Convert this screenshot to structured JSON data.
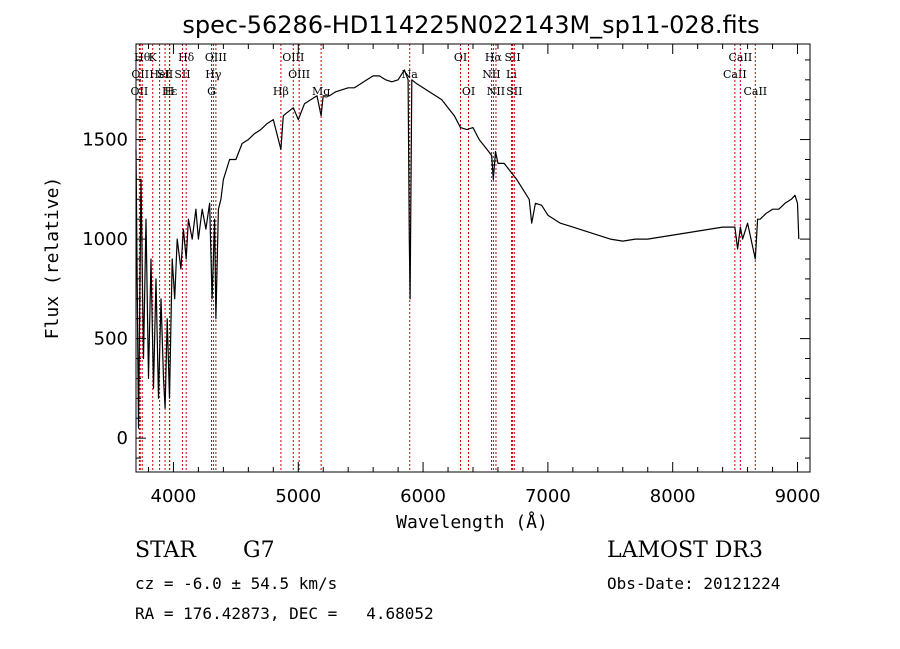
{
  "chart_data": {
    "type": "line",
    "title": "spec-56286-HD114225N022143M_sp11-028.fits",
    "xlabel": "Wavelength (Å)",
    "ylabel": "Flux (relative)",
    "xlim": [
      3700,
      9100
    ],
    "ylim": [
      -170,
      1980
    ],
    "xticks": [
      "4000",
      "5000",
      "6000",
      "7000",
      "8000",
      "9000"
    ],
    "yticks": [
      "0",
      "500",
      "1000",
      "1500"
    ],
    "grid": false,
    "series": [
      {
        "color": "#000000",
        "x": [
          3700,
          3720,
          3740,
          3760,
          3780,
          3800,
          3820,
          3840,
          3860,
          3880,
          3900,
          3920,
          3933,
          3950,
          3968,
          3990,
          4010,
          4030,
          4060,
          4080,
          4102,
          4120,
          4150,
          4180,
          4200,
          4230,
          4260,
          4290,
          4310,
          4330,
          4340,
          4360,
          4380,
          4400,
          4450,
          4500,
          4550,
          4600,
          4650,
          4700,
          4750,
          4800,
          4861,
          4880,
          4920,
          4960,
          5000,
          5050,
          5100,
          5150,
          5183,
          5200,
          5250,
          5300,
          5350,
          5400,
          5450,
          5500,
          5550,
          5600,
          5650,
          5700,
          5750,
          5800,
          5850,
          5880,
          5890,
          5896,
          5910,
          5950,
          6000,
          6050,
          6100,
          6150,
          6200,
          6250,
          6300,
          6350,
          6400,
          6450,
          6500,
          6550,
          6563,
          6580,
          6600,
          6650,
          6700,
          6750,
          6800,
          6850,
          6870,
          6900,
          6950,
          7000,
          7050,
          7100,
          7200,
          7300,
          7400,
          7500,
          7600,
          7700,
          7800,
          7900,
          8000,
          8100,
          8200,
          8300,
          8400,
          8498,
          8520,
          8542,
          8560,
          8600,
          8662,
          8680,
          8700,
          8750,
          8800,
          8850,
          8900,
          8950,
          8980,
          9000,
          9010
        ],
        "y": [
          1450,
          50,
          1300,
          400,
          1100,
          300,
          900,
          250,
          800,
          200,
          700,
          300,
          150,
          600,
          200,
          900,
          700,
          1000,
          850,
          1050,
          900,
          1100,
          1000,
          1150,
          1000,
          1150,
          1050,
          1180,
          700,
          1100,
          600,
          1150,
          1200,
          1300,
          1400,
          1400,
          1480,
          1500,
          1530,
          1550,
          1580,
          1600,
          1450,
          1620,
          1640,
          1660,
          1600,
          1680,
          1700,
          1720,
          1620,
          1720,
          1720,
          1740,
          1750,
          1760,
          1760,
          1780,
          1800,
          1820,
          1820,
          1800,
          1790,
          1800,
          1850,
          1800,
          1000,
          700,
          1800,
          1780,
          1760,
          1740,
          1720,
          1700,
          1660,
          1620,
          1560,
          1550,
          1560,
          1500,
          1460,
          1420,
          1300,
          1440,
          1380,
          1380,
          1340,
          1300,
          1250,
          1200,
          1080,
          1180,
          1170,
          1120,
          1100,
          1080,
          1060,
          1040,
          1020,
          1000,
          990,
          1000,
          1000,
          1010,
          1020,
          1030,
          1040,
          1050,
          1060,
          1060,
          950,
          1060,
          1000,
          1080,
          900,
          1100,
          1100,
          1130,
          1150,
          1150,
          1180,
          1200,
          1220,
          1180,
          1000
        ]
      }
    ],
    "lines": [
      {
        "x": 3750,
        "label": "Hθ",
        "row": 0
      },
      {
        "x": 3734,
        "label": "OII",
        "row": 1
      },
      {
        "x": 3727,
        "label": "OII",
        "row": 2
      },
      {
        "x": 3834,
        "label": "K",
        "row": 0
      },
      {
        "x": 3889,
        "label": "HeI",
        "row": 1
      },
      {
        "x": 3970,
        "label": "Hε",
        "row": 2
      },
      {
        "x": 3933,
        "label": "SII",
        "row": 1
      },
      {
        "x": 3968,
        "label": "H",
        "row": 2
      },
      {
        "x": 4102,
        "label": "Hδ",
        "row": 0
      },
      {
        "x": 4072,
        "label": "SII",
        "row": 1
      },
      {
        "x": 4340,
        "label": "OIII",
        "row": 0
      },
      {
        "x": 4320,
        "label": "Hγ",
        "row": 1
      },
      {
        "x": 4305,
        "label": "G",
        "row": 2
      },
      {
        "x": 4861,
        "label": "Hβ",
        "row": 2
      },
      {
        "x": 4960,
        "label": "OIII",
        "row": 0
      },
      {
        "x": 5007,
        "label": "OIII",
        "row": 1
      },
      {
        "x": 5183,
        "label": "Mg",
        "row": 2
      },
      {
        "x": 5893,
        "label": "Na",
        "row": 1
      },
      {
        "x": 6300,
        "label": "OI",
        "row": 0
      },
      {
        "x": 6364,
        "label": "OI",
        "row": 2
      },
      {
        "x": 6548,
        "label": "NII",
        "row": 1
      },
      {
        "x": 6563,
        "label": "Hα",
        "row": 0
      },
      {
        "x": 6584,
        "label": "NII",
        "row": 2
      },
      {
        "x": 6717,
        "label": "SII",
        "row": 0
      },
      {
        "x": 6708,
        "label": "Li",
        "row": 1
      },
      {
        "x": 6731,
        "label": "SII",
        "row": 2
      },
      {
        "x": 8498,
        "label": "CaII",
        "row": 1
      },
      {
        "x": 8542,
        "label": "CaII",
        "row": 0
      },
      {
        "x": 8662,
        "label": "CaII",
        "row": 2
      }
    ]
  },
  "info": {
    "object_class": "STAR",
    "subclass": "G7",
    "survey": "LAMOST DR3",
    "redshift": "cz = -6.0 ± 54.5 km/s",
    "obs_date": "Obs-Date: 20121224",
    "coords": "RA = 176.42873, DEC =   4.68052"
  }
}
